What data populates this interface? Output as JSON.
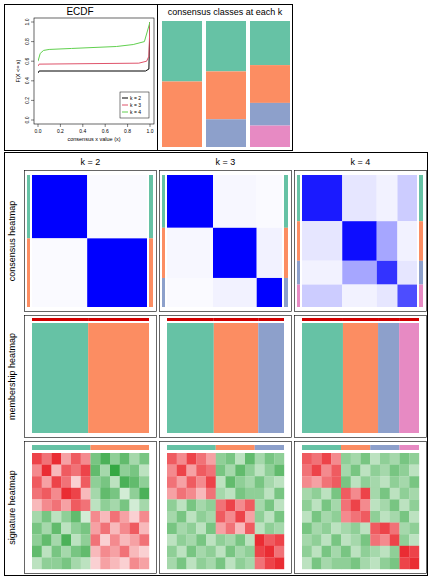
{
  "chart_data": [
    {
      "type": "line",
      "title": "ECDF",
      "x_label": "consensus x value (x)",
      "y_label": "F(X <= x)",
      "xlim": [
        0,
        1
      ],
      "ylim": [
        0,
        1
      ],
      "xticks": [
        {
          "value": 0,
          "label": "0.0"
        },
        0.2,
        0.4,
        0.6,
        0.8,
        {
          "value": 1,
          "label": "1.0"
        }
      ],
      "yticks": [
        {
          "value": 0,
          "label": "0.0"
        },
        0.2,
        0.4,
        0.6,
        0.8,
        {
          "value": 1,
          "label": "1.0"
        }
      ],
      "grid": false,
      "legend": "bottomright",
      "series": [
        {
          "name": "k = 2",
          "color": "#000000",
          "x": [
            0,
            0.01,
            0.96,
            0.99,
            1
          ],
          "values": [
            0.48,
            0.5,
            0.5,
            0.52,
            1
          ]
        },
        {
          "name": "k = 3",
          "color": "#DF536B",
          "x": [
            0,
            0.01,
            0.9,
            0.97,
            0.99,
            1
          ],
          "values": [
            0.55,
            0.57,
            0.58,
            0.6,
            0.65,
            1
          ]
        },
        {
          "name": "k = 4",
          "color": "#61D04F",
          "x": [
            0,
            0.02,
            0.05,
            0.1,
            0.3,
            0.5,
            0.7,
            0.85,
            0.95,
            1
          ],
          "values": [
            0.6,
            0.68,
            0.71,
            0.72,
            0.73,
            0.74,
            0.75,
            0.77,
            0.8,
            1
          ]
        }
      ]
    },
    {
      "type": "heatmap",
      "title": "consensus classes at each k",
      "columns": [
        {
          "sizes": [
            48,
            52
          ],
          "colors": [
            "#66C2A5",
            "#FC8D62"
          ]
        },
        {
          "sizes": [
            40,
            38,
            22
          ],
          "colors": [
            "#66C2A5",
            "#FC8D62",
            "#8DA0CB"
          ]
        },
        {
          "sizes": [
            35,
            30,
            18,
            17
          ],
          "colors": [
            "#66C2A5",
            "#FC8D62",
            "#8DA0CB",
            "#E78AC3"
          ]
        }
      ]
    },
    {
      "type": "heatmap",
      "column_titles": [
        "k = 2",
        "k = 3",
        "k = 4"
      ],
      "row_titles": [
        "consensus heatmap",
        "membership heatmap",
        "signature heatmap"
      ],
      "panels": [
        {
          "group_sizes": [
            48,
            52
          ],
          "group_colors": [
            "#66C2A5",
            "#FC8D62"
          ],
          "consensus": [
            [
              1,
              0.02
            ],
            [
              0.02,
              1
            ]
          ],
          "signature_groups": [
            6,
            6
          ],
          "signature": [
            [
              0.8,
              0.6,
              0.9,
              0.4,
              0.7,
              0.5,
              -0.6,
              -0.8,
              -0.5,
              -0.7,
              -0.4,
              -0.6
            ],
            [
              0.5,
              0.9,
              0.3,
              0.7,
              0.6,
              0.8,
              -0.7,
              -0.4,
              -0.9,
              -0.5,
              -0.6,
              -0.3
            ],
            [
              0.7,
              0.4,
              0.8,
              0.6,
              0.2,
              0.7,
              -0.5,
              -0.6,
              -0.3,
              -0.8,
              -0.7,
              -0.5
            ],
            [
              0.6,
              0.7,
              0.5,
              0.9,
              0.8,
              0.3,
              -0.4,
              -0.7,
              -0.6,
              -0.2,
              -0.5,
              -0.8
            ],
            [
              0.3,
              0.5,
              0.6,
              0.4,
              0.7,
              0.6,
              -0.3,
              -0.5,
              -0.4,
              -0.6,
              -0.2,
              -0.4
            ],
            [
              -0.4,
              -0.6,
              -0.3,
              -0.5,
              -0.7,
              -0.2,
              0.5,
              0.3,
              0.6,
              0.4,
              0.2,
              0.5
            ],
            [
              -0.6,
              -0.4,
              -0.7,
              -0.3,
              -0.5,
              -0.6,
              0.4,
              0.6,
              0.3,
              0.5,
              0.7,
              0.3
            ],
            [
              -0.5,
              -0.7,
              -0.4,
              -0.8,
              -0.3,
              -0.5,
              0.6,
              0.2,
              0.5,
              0.3,
              0.4,
              0.6
            ],
            [
              -0.7,
              -0.3,
              -0.6,
              -0.4,
              -0.6,
              -0.7,
              0.3,
              0.5,
              0.4,
              0.6,
              0.3,
              0.2
            ],
            [
              -0.3,
              -0.5,
              -0.5,
              -0.6,
              -0.4,
              -0.3,
              0.2,
              0.4,
              0.3,
              0.2,
              0.5,
              0.4
            ]
          ]
        },
        {
          "group_sizes": [
            40,
            38,
            22
          ],
          "group_colors": [
            "#66C2A5",
            "#FC8D62",
            "#8DA0CB"
          ],
          "consensus": [
            [
              1,
              0.03,
              0.02
            ],
            [
              0.03,
              1,
              0.05
            ],
            [
              0.02,
              0.05,
              1
            ]
          ],
          "signature_groups": [
            5,
            4,
            3
          ],
          "signature": [
            [
              0.7,
              0.5,
              0.8,
              0.6,
              0.4,
              -0.5,
              -0.6,
              -0.3,
              -0.7,
              -0.4,
              -0.6,
              -0.5
            ],
            [
              0.5,
              0.8,
              0.4,
              0.7,
              0.6,
              -0.6,
              -0.4,
              -0.7,
              -0.5,
              -0.3,
              -0.5,
              -0.7
            ],
            [
              0.6,
              0.4,
              0.7,
              0.5,
              0.8,
              -0.3,
              -0.7,
              -0.5,
              -0.4,
              -0.6,
              -0.4,
              -0.3
            ],
            [
              0.4,
              0.6,
              0.5,
              0.3,
              0.6,
              -0.4,
              -0.3,
              -0.6,
              -0.5,
              -0.5,
              -0.3,
              -0.6
            ],
            [
              -0.5,
              -0.3,
              -0.6,
              -0.4,
              -0.5,
              0.6,
              0.8,
              0.5,
              0.7,
              -0.4,
              -0.6,
              -0.3
            ],
            [
              -0.4,
              -0.6,
              -0.3,
              -0.5,
              -0.4,
              0.7,
              0.5,
              0.8,
              0.4,
              -0.5,
              -0.3,
              -0.6
            ],
            [
              -0.6,
              -0.4,
              -0.5,
              -0.3,
              -0.6,
              0.4,
              0.6,
              0.3,
              0.7,
              -0.3,
              -0.5,
              -0.4
            ],
            [
              -0.3,
              -0.5,
              -0.4,
              -0.6,
              -0.3,
              -0.5,
              -0.4,
              -0.6,
              -0.3,
              0.9,
              0.7,
              0.8
            ],
            [
              -0.5,
              -0.3,
              -0.6,
              -0.4,
              -0.5,
              -0.3,
              -0.6,
              -0.4,
              -0.5,
              0.8,
              0.9,
              0.6
            ],
            [
              -0.4,
              -0.6,
              -0.3,
              -0.5,
              -0.4,
              -0.6,
              -0.3,
              -0.5,
              -0.4,
              0.6,
              0.8,
              0.9
            ]
          ]
        },
        {
          "group_sizes": [
            35,
            30,
            18,
            17
          ],
          "group_colors": [
            "#66C2A5",
            "#FC8D62",
            "#8DA0CB",
            "#E78AC3"
          ],
          "consensus": [
            [
              0.9,
              0.1,
              0.05,
              0.2
            ],
            [
              0.1,
              0.95,
              0.35,
              0.05
            ],
            [
              0.05,
              0.35,
              0.8,
              0.1
            ],
            [
              0.2,
              0.05,
              0.1,
              0.7
            ]
          ],
          "signature_groups": [
            4,
            3,
            3,
            2
          ],
          "signature": [
            [
              0.7,
              0.6,
              0.8,
              0.5,
              -0.5,
              -0.4,
              -0.6,
              -0.3,
              -0.5,
              -0.4,
              -0.6,
              -0.5
            ],
            [
              0.6,
              0.8,
              0.5,
              0.7,
              -0.4,
              -0.6,
              -0.3,
              -0.5,
              -0.4,
              -0.6,
              -0.5,
              -0.3
            ],
            [
              0.5,
              0.4,
              0.6,
              0.7,
              -0.6,
              -0.3,
              -0.5,
              -0.4,
              -0.3,
              -0.5,
              -0.4,
              -0.6
            ],
            [
              -0.4,
              -0.5,
              -0.3,
              -0.6,
              0.7,
              0.5,
              0.8,
              -0.4,
              -0.6,
              -0.3,
              -0.5,
              -0.4
            ],
            [
              -0.5,
              -0.3,
              -0.6,
              -0.4,
              0.6,
              0.8,
              0.5,
              -0.3,
              -0.4,
              -0.6,
              -0.3,
              -0.5
            ],
            [
              -0.3,
              -0.6,
              -0.4,
              -0.5,
              0.5,
              0.6,
              0.7,
              -0.5,
              -0.3,
              -0.4,
              -0.6,
              -0.3
            ],
            [
              -0.6,
              -0.4,
              -0.5,
              -0.3,
              -0.4,
              -0.5,
              -0.3,
              0.7,
              0.8,
              0.6,
              -0.4,
              -0.5
            ],
            [
              -0.4,
              -0.5,
              -0.3,
              -0.6,
              -0.3,
              -0.4,
              -0.6,
              0.6,
              0.5,
              0.8,
              -0.5,
              -0.3
            ],
            [
              -0.5,
              -0.3,
              -0.6,
              -0.4,
              -0.6,
              -0.3,
              -0.5,
              -0.4,
              -0.3,
              -0.5,
              0.9,
              0.8
            ],
            [
              -0.3,
              -0.6,
              -0.4,
              -0.5,
              -0.5,
              -0.6,
              -0.4,
              -0.3,
              -0.5,
              -0.6,
              0.8,
              0.9
            ]
          ]
        }
      ]
    }
  ]
}
